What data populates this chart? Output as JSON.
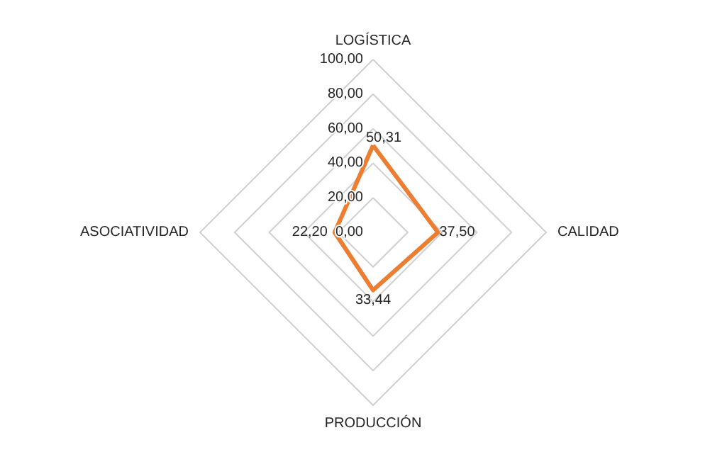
{
  "chart_data": {
    "type": "radar",
    "categories": [
      "LOGÍSTICA",
      "CALIDAD",
      "PRODUCCIÓN",
      "ASOCIATIVIDAD"
    ],
    "series": [
      {
        "color": "#ed7d31",
        "values": [
          50.31,
          37.5,
          33.44,
          22.2
        ],
        "value_labels": [
          "50,31",
          "37,50",
          "33,44",
          "22,20"
        ]
      }
    ],
    "ylim": [
      0,
      100
    ],
    "yticks": [
      {
        "value": 0,
        "label": "0,00"
      },
      {
        "value": 20,
        "label": "20,00"
      },
      {
        "value": 40,
        "label": "40,00"
      },
      {
        "value": 60,
        "label": "60,00"
      },
      {
        "value": 80,
        "label": "80,00"
      },
      {
        "value": 100,
        "label": "100,00"
      }
    ],
    "grid": true,
    "marker": "none"
  }
}
